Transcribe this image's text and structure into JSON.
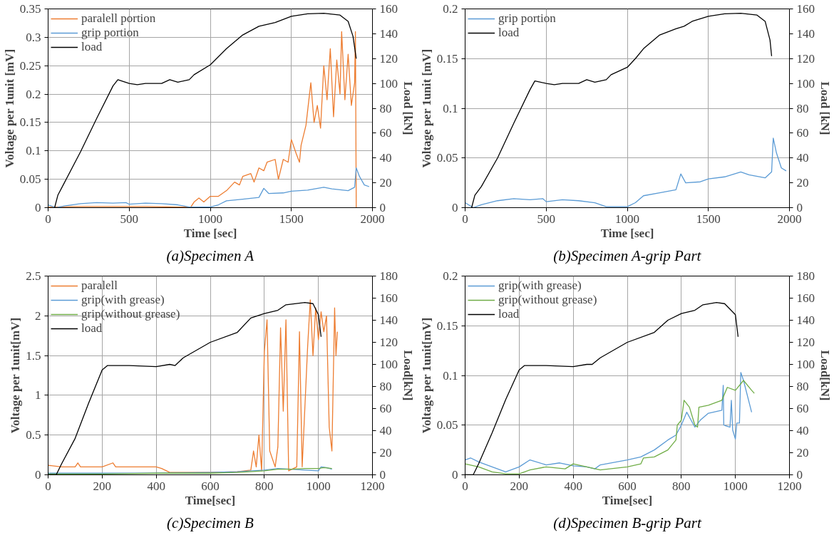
{
  "chart_data": [
    {
      "type": "line",
      "title": "(a)Specimen A",
      "xlabel": "Time [sec]",
      "ylabel": "Voltage per 1unit [mV]",
      "y2label": "Load [kN]",
      "xlim": [
        0,
        2000
      ],
      "xticks": [
        0,
        500,
        1000,
        1500,
        2000
      ],
      "ylim": [
        0,
        0.35
      ],
      "yticks": [
        0,
        0.05,
        0.1,
        0.15,
        0.2,
        0.25,
        0.3,
        0.35
      ],
      "y2lim": [
        0,
        160
      ],
      "y2ticks": [
        0,
        20,
        40,
        60,
        80,
        100,
        120,
        140,
        160
      ],
      "grid": true,
      "legend": "top left",
      "series": [
        {
          "name": "paralell portion",
          "color": "#ed7d31",
          "x": [
            0,
            200,
            400,
            600,
            800,
            880,
            900,
            930,
            960,
            1000,
            1050,
            1100,
            1150,
            1180,
            1200,
            1250,
            1270,
            1300,
            1330,
            1350,
            1400,
            1420,
            1450,
            1480,
            1500,
            1530,
            1550,
            1560,
            1590,
            1620,
            1640,
            1660,
            1680,
            1700,
            1720,
            1740,
            1760,
            1780,
            1800,
            1810,
            1830,
            1850,
            1870,
            1890,
            1895,
            1900
          ],
          "values": [
            0.001,
            0.002,
            0.002,
            0.002,
            0.001,
            0.001,
            0.01,
            0.017,
            0.01,
            0.02,
            0.02,
            0.03,
            0.045,
            0.04,
            0.055,
            0.06,
            0.045,
            0.07,
            0.065,
            0.08,
            0.085,
            0.05,
            0.085,
            0.08,
            0.12,
            0.095,
            0.08,
            0.11,
            0.145,
            0.22,
            0.15,
            0.18,
            0.14,
            0.25,
            0.19,
            0.28,
            0.16,
            0.26,
            0.2,
            0.31,
            0.19,
            0.27,
            0.18,
            0.22,
            0.31,
            0.0
          ]
        },
        {
          "name": "grip portion",
          "color": "#5b9bd5",
          "x": [
            0,
            50,
            100,
            200,
            300,
            400,
            480,
            500,
            600,
            700,
            800,
            870,
            950,
            1000,
            1050,
            1100,
            1200,
            1300,
            1330,
            1360,
            1450,
            1500,
            1600,
            1700,
            1750,
            1850,
            1890,
            1900,
            1920,
            1950,
            1980
          ],
          "values": [
            0.005,
            0.0,
            0.003,
            0.007,
            0.009,
            0.008,
            0.009,
            0.006,
            0.008,
            0.007,
            0.005,
            0.001,
            0.001,
            0.001,
            0.005,
            0.012,
            0.015,
            0.018,
            0.034,
            0.025,
            0.026,
            0.029,
            0.031,
            0.036,
            0.033,
            0.03,
            0.036,
            0.07,
            0.055,
            0.04,
            0.037
          ]
        },
        {
          "name": "load",
          "color": "#000000",
          "axis": "y2",
          "x": [
            40,
            60,
            100,
            200,
            300,
            400,
            430,
            500,
            550,
            600,
            700,
            750,
            800,
            870,
            900,
            1000,
            1100,
            1200,
            1300,
            1400,
            1500,
            1600,
            1700,
            1800,
            1850,
            1880,
            1900
          ],
          "values": [
            0,
            10,
            20,
            45,
            72,
            98,
            103,
            100,
            99,
            100,
            100,
            103,
            101,
            103,
            107,
            115,
            128,
            139,
            146,
            149,
            154,
            156,
            156.5,
            155,
            150,
            138,
            120
          ]
        }
      ]
    },
    {
      "type": "line",
      "title": "(b)Specimen A-grip Part",
      "xlabel": "Time [sec]",
      "ylabel": "Voltage per 1unit [mV]",
      "y2label": "Load [kN]",
      "xlim": [
        0,
        2000
      ],
      "xticks": [
        0,
        500,
        1000,
        1500,
        2000
      ],
      "ylim": [
        0,
        0.2
      ],
      "yticks": [
        0,
        0.05,
        0.1,
        0.15,
        0.2
      ],
      "y2lim": [
        0,
        160
      ],
      "y2ticks": [
        0,
        20,
        40,
        60,
        80,
        100,
        120,
        140,
        160
      ],
      "grid": true,
      "legend": "top left",
      "series": [
        {
          "name": "grip portion",
          "color": "#5b9bd5",
          "x": [
            0,
            50,
            100,
            200,
            300,
            400,
            480,
            500,
            600,
            700,
            800,
            870,
            950,
            1000,
            1050,
            1100,
            1200,
            1300,
            1330,
            1360,
            1450,
            1500,
            1600,
            1700,
            1750,
            1850,
            1890,
            1900,
            1920,
            1950,
            1980
          ],
          "values": [
            0.005,
            0.0,
            0.003,
            0.007,
            0.009,
            0.008,
            0.009,
            0.006,
            0.008,
            0.007,
            0.005,
            0.001,
            0.001,
            0.001,
            0.005,
            0.012,
            0.015,
            0.018,
            0.034,
            0.025,
            0.026,
            0.029,
            0.031,
            0.036,
            0.033,
            0.03,
            0.036,
            0.07,
            0.055,
            0.04,
            0.037
          ]
        },
        {
          "name": "load",
          "color": "#000000",
          "axis": "y2",
          "x": [
            40,
            60,
            100,
            200,
            300,
            400,
            430,
            500,
            550,
            600,
            700,
            750,
            800,
            870,
            900,
            1000,
            1050,
            1100,
            1200,
            1300,
            1350,
            1400,
            1500,
            1600,
            1700,
            1800,
            1850,
            1880,
            1890
          ],
          "values": [
            0,
            10,
            17,
            40,
            68,
            95,
            102,
            100,
            99,
            100,
            100,
            103,
            101,
            103,
            107,
            113,
            120,
            128,
            139,
            144,
            146,
            150,
            154,
            156,
            156.5,
            155,
            150,
            135,
            122
          ]
        }
      ]
    },
    {
      "type": "line",
      "title": "(c)Specimen B",
      "xlabel": "Time[sec]",
      "ylabel": "Voltage per 1unit[mV]",
      "y2label": "Load[kN]",
      "xlim": [
        0,
        1200
      ],
      "xticks": [
        0,
        200,
        400,
        600,
        800,
        1000,
        1200
      ],
      "ylim": [
        0,
        2.5
      ],
      "yticks": [
        0,
        0.5,
        1,
        1.5,
        2,
        2.5
      ],
      "y2lim": [
        0,
        180
      ],
      "y2ticks": [
        0,
        20,
        40,
        60,
        80,
        100,
        120,
        140,
        160,
        180
      ],
      "grid": true,
      "legend": "top left",
      "series": [
        {
          "name": "paralell",
          "color": "#ed7d31",
          "x": [
            0,
            50,
            100,
            110,
            120,
            200,
            240,
            250,
            400,
            420,
            450,
            600,
            700,
            750,
            760,
            770,
            780,
            790,
            800,
            810,
            820,
            840,
            850,
            860,
            870,
            880,
            890,
            920,
            930,
            940,
            960,
            970,
            980,
            990,
            1000,
            1010,
            1020,
            1030,
            1040,
            1050,
            1060,
            1065,
            1070
          ],
          "values": [
            0.12,
            0.1,
            0.1,
            0.15,
            0.1,
            0.1,
            0.15,
            0.1,
            0.1,
            0.08,
            0.03,
            0.03,
            0.04,
            0.06,
            0.3,
            0.1,
            0.5,
            0.05,
            1.55,
            1.95,
            0.3,
            0.1,
            0.35,
            1.85,
            0.8,
            1.95,
            0.05,
            0.1,
            1.8,
            0.1,
            1.6,
            2.2,
            1.5,
            2.1,
            1.7,
            2.05,
            1.8,
            2.0,
            0.6,
            0.3,
            2.1,
            1.5,
            1.8
          ]
        },
        {
          "name": "grip(with grease)",
          "color": "#5b9bd5",
          "x": [
            0,
            200,
            400,
            600,
            700,
            800,
            850,
            900,
            950,
            1000,
            1010,
            1030,
            1050
          ],
          "values": [
            0.02,
            0.02,
            0.02,
            0.03,
            0.04,
            0.06,
            0.08,
            0.07,
            0.06,
            0.05,
            0.1,
            0.09,
            0.07
          ]
        },
        {
          "name": "grip(without grease)",
          "color": "#70ad47",
          "x": [
            0,
            200,
            400,
            600,
            700,
            800,
            850,
            900,
            950,
            1000,
            1020,
            1050
          ],
          "values": [
            0.01,
            0.01,
            0.02,
            0.02,
            0.03,
            0.05,
            0.07,
            0.07,
            0.08,
            0.08,
            0.09,
            0.08
          ]
        },
        {
          "name": "load",
          "color": "#000000",
          "axis": "y2",
          "x": [
            0,
            30,
            50,
            100,
            150,
            200,
            220,
            300,
            400,
            450,
            470,
            500,
            600,
            700,
            750,
            800,
            850,
            880,
            950,
            980,
            1000,
            1010
          ],
          "values": [
            0,
            0,
            10,
            33,
            65,
            95,
            99,
            99,
            98,
            100,
            99,
            106,
            120,
            129,
            142,
            146,
            149,
            154,
            156,
            155,
            145,
            125
          ]
        }
      ]
    },
    {
      "type": "line",
      "title": "(d)Specimen B-grip Part",
      "xlabel": "Time[sec]",
      "ylabel": "Voltage per 1unit[mV]",
      "y2label": "Load[kN]",
      "xlim": [
        0,
        1200
      ],
      "xticks": [
        0,
        200,
        400,
        600,
        800,
        1000,
        1200
      ],
      "ylim": [
        0,
        0.2
      ],
      "yticks": [
        0,
        0.05,
        0.1,
        0.15,
        0.2
      ],
      "y2lim": [
        0,
        180
      ],
      "y2ticks": [
        0,
        20,
        40,
        60,
        80,
        100,
        120,
        140,
        160,
        180
      ],
      "grid": true,
      "legend": "top left",
      "series": [
        {
          "name": "grip(with grease)",
          "color": "#5b9bd5",
          "x": [
            0,
            20,
            50,
            100,
            150,
            200,
            240,
            300,
            350,
            400,
            450,
            480,
            500,
            600,
            650,
            700,
            750,
            780,
            800,
            820,
            850,
            870,
            900,
            950,
            955,
            957,
            980,
            985,
            990,
            1000,
            1005,
            1015,
            1020,
            1030,
            1060
          ],
          "values": [
            0.015,
            0.017,
            0.013,
            0.008,
            0.003,
            0.008,
            0.015,
            0.01,
            0.012,
            0.009,
            0.008,
            0.006,
            0.01,
            0.015,
            0.018,
            0.025,
            0.035,
            0.04,
            0.05,
            0.063,
            0.048,
            0.055,
            0.062,
            0.065,
            0.09,
            0.05,
            0.048,
            0.075,
            0.045,
            0.036,
            0.052,
            0.052,
            0.103,
            0.095,
            0.063
          ]
        },
        {
          "name": "grip(without grease)",
          "color": "#70ad47",
          "x": [
            0,
            50,
            100,
            150,
            200,
            240,
            300,
            370,
            400,
            450,
            500,
            600,
            650,
            660,
            700,
            750,
            780,
            785,
            800,
            810,
            830,
            850,
            860,
            865,
            900,
            950,
            970,
            1000,
            1030,
            1060,
            1070
          ],
          "values": [
            0.011,
            0.008,
            0.003,
            0.001,
            0.001,
            0.005,
            0.008,
            0.006,
            0.011,
            0.008,
            0.005,
            0.008,
            0.011,
            0.017,
            0.018,
            0.025,
            0.035,
            0.05,
            0.055,
            0.075,
            0.068,
            0.05,
            0.048,
            0.068,
            0.07,
            0.075,
            0.088,
            0.085,
            0.095,
            0.085,
            0.082
          ]
        },
        {
          "name": "load",
          "color": "#000000",
          "axis": "y2",
          "x": [
            0,
            30,
            50,
            100,
            150,
            200,
            220,
            300,
            400,
            450,
            470,
            500,
            600,
            700,
            750,
            800,
            850,
            880,
            930,
            960,
            1000,
            1010
          ],
          "values": [
            0,
            0,
            10,
            38,
            68,
            95,
            99,
            99,
            98,
            100,
            100,
            106,
            120,
            129,
            140,
            146,
            149,
            154,
            156,
            155,
            145,
            125
          ]
        }
      ]
    }
  ]
}
